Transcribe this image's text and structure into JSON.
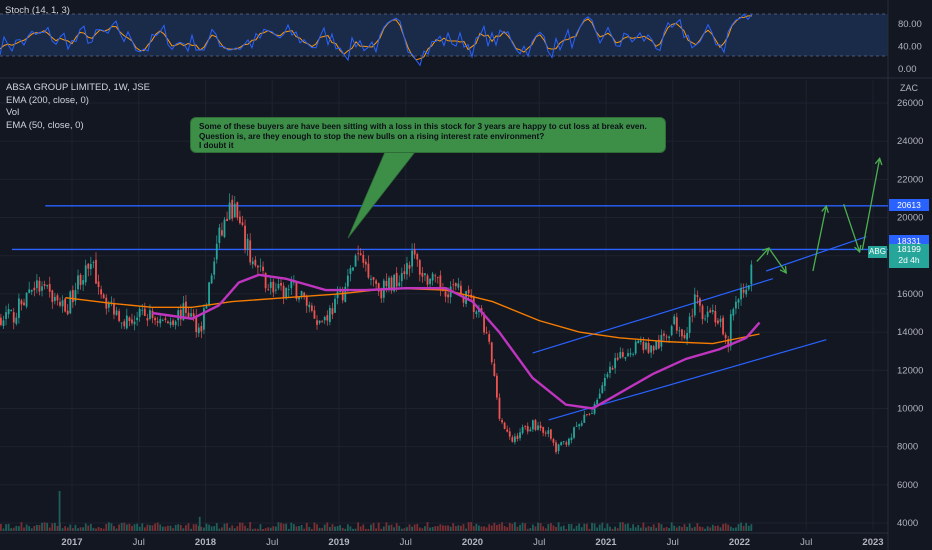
{
  "stoch": {
    "label": "Stoch (14, 1, 3)",
    "levels": [
      "80.00",
      "40.00",
      "0.00"
    ]
  },
  "legend": {
    "title": "ABSA GROUP LIMITED, 1W, JSE",
    "ema200": "EMA (200, close, 0)",
    "vol": "Vol",
    "ema50": "EMA (50, close, 0)"
  },
  "currency": "ZAC",
  "annotation": {
    "line1": "Some of these buyers  are have been sitting with a loss in this stock for 3 years are happy to cut loss at break even.",
    "line2": "Question is, are they enough to stop the new bulls on a rising interest rate environment?",
    "line3": "I doubt it"
  },
  "ticker": "ABG",
  "last_price": "18199",
  "countdown": "2d 4h",
  "level_labels": {
    "upper": "20613",
    "lower": "18331"
  },
  "chart_data": {
    "type": "candlestick",
    "symbol": "ABG",
    "y_ticks": [
      "26000",
      "24000",
      "22000",
      "20000",
      "18000",
      "16000",
      "14000",
      "12000",
      "10000",
      "8000",
      "6000",
      "4000"
    ],
    "x_ticks": [
      "2017",
      "Jul",
      "2018",
      "Jul",
      "2019",
      "Jul",
      "2020",
      "Jul",
      "2021",
      "Jul",
      "2022",
      "Jul",
      "2023"
    ],
    "ylim": [
      4000,
      26000
    ],
    "horizontal_levels": [
      20613,
      18331
    ],
    "price_path": [
      [
        2016.55,
        14800
      ],
      [
        2016.7,
        16500
      ],
      [
        2016.85,
        15800
      ],
      [
        2016.95,
        15200
      ],
      [
        2017.05,
        16900
      ],
      [
        2017.15,
        17300
      ],
      [
        2017.25,
        15600
      ],
      [
        2017.4,
        14600
      ],
      [
        2017.55,
        14900
      ],
      [
        2017.7,
        14500
      ],
      [
        2017.85,
        15200
      ],
      [
        2017.95,
        14100
      ],
      [
        2018.0,
        15600
      ],
      [
        2018.08,
        18600
      ],
      [
        2018.15,
        20000
      ],
      [
        2018.2,
        20600
      ],
      [
        2018.25,
        19400
      ],
      [
        2018.35,
        17600
      ],
      [
        2018.45,
        16600
      ],
      [
        2018.55,
        16000
      ],
      [
        2018.65,
        16300
      ],
      [
        2018.75,
        15600
      ],
      [
        2018.85,
        14500
      ],
      [
        2018.95,
        15300
      ],
      [
        2019.05,
        16500
      ],
      [
        2019.12,
        18000
      ],
      [
        2019.2,
        17500
      ],
      [
        2019.3,
        16200
      ],
      [
        2019.4,
        16600
      ],
      [
        2019.5,
        17600
      ],
      [
        2019.55,
        18000
      ],
      [
        2019.62,
        17000
      ],
      [
        2019.75,
        16300
      ],
      [
        2019.85,
        16300
      ],
      [
        2019.95,
        15800
      ],
      [
        2020.05,
        14800
      ],
      [
        2020.12,
        13200
      ],
      [
        2020.2,
        9500
      ],
      [
        2020.28,
        8200
      ],
      [
        2020.35,
        8800
      ],
      [
        2020.45,
        9200
      ],
      [
        2020.55,
        8800
      ],
      [
        2020.62,
        7800
      ],
      [
        2020.72,
        8500
      ],
      [
        2020.8,
        9200
      ],
      [
        2020.88,
        9800
      ],
      [
        2020.95,
        11000
      ],
      [
        2021.05,
        12200
      ],
      [
        2021.15,
        13000
      ],
      [
        2021.25,
        13500
      ],
      [
        2021.32,
        13100
      ],
      [
        2021.4,
        13400
      ],
      [
        2021.5,
        14500
      ],
      [
        2021.6,
        14000
      ],
      [
        2021.65,
        15600
      ],
      [
        2021.72,
        15100
      ],
      [
        2021.78,
        15200
      ],
      [
        2021.85,
        14300
      ],
      [
        2021.9,
        13000
      ],
      [
        2021.93,
        14800
      ],
      [
        2021.98,
        15600
      ],
      [
        2022.05,
        16500
      ],
      [
        2022.12,
        18199
      ]
    ],
    "ema50": [
      [
        2017.6,
        15000
      ],
      [
        2017.9,
        14700
      ],
      [
        2018.1,
        15400
      ],
      [
        2018.25,
        16600
      ],
      [
        2018.4,
        17000
      ],
      [
        2018.6,
        16800
      ],
      [
        2018.9,
        16200
      ],
      [
        2019.2,
        16200
      ],
      [
        2019.5,
        16300
      ],
      [
        2019.8,
        16300
      ],
      [
        2020.0,
        15600
      ],
      [
        2020.2,
        14000
      ],
      [
        2020.45,
        11600
      ],
      [
        2020.7,
        10200
      ],
      [
        2020.9,
        10000
      ],
      [
        2021.1,
        10800
      ],
      [
        2021.35,
        11800
      ],
      [
        2021.6,
        12600
      ],
      [
        2021.85,
        13100
      ],
      [
        2022.05,
        13700
      ],
      [
        2022.15,
        14500
      ]
    ],
    "ema200": [
      [
        2016.95,
        15800
      ],
      [
        2017.3,
        15500
      ],
      [
        2017.6,
        15300
      ],
      [
        2017.9,
        15300
      ],
      [
        2018.2,
        15600
      ],
      [
        2018.6,
        15800
      ],
      [
        2019.0,
        16000
      ],
      [
        2019.4,
        16300
      ],
      [
        2019.8,
        16200
      ],
      [
        2020.15,
        15600
      ],
      [
        2020.5,
        14600
      ],
      [
        2020.8,
        14000
      ],
      [
        2021.1,
        13700
      ],
      [
        2021.45,
        13500
      ],
      [
        2021.8,
        13400
      ],
      [
        2022.15,
        13900
      ]
    ],
    "channel": {
      "upper": [
        [
          2020.45,
          12900
        ],
        [
          2022.25,
          16800
        ]
      ],
      "middle": [
        [
          2022.2,
          17200
        ],
        [
          2022.95,
          19000
        ]
      ],
      "lower": [
        [
          2020.57,
          9400
        ],
        [
          2022.65,
          13600
        ]
      ]
    },
    "projection_arrows": [
      [
        [
          2022.13,
          17700
        ],
        [
          2022.22,
          18400
        ]
      ],
      [
        [
          2022.22,
          18400
        ],
        [
          2022.35,
          17100
        ]
      ],
      [
        [
          2022.55,
          17200
        ],
        [
          2022.65,
          20600
        ]
      ],
      [
        [
          2022.78,
          20700
        ],
        [
          2022.9,
          18200
        ]
      ],
      [
        [
          2022.92,
          18300
        ],
        [
          2023.05,
          23100
        ]
      ]
    ],
    "volume_spikes": [
      [
        2016.9,
        9600
      ],
      [
        2017.95,
        3400
      ],
      [
        2018.0,
        1800
      ]
    ]
  }
}
